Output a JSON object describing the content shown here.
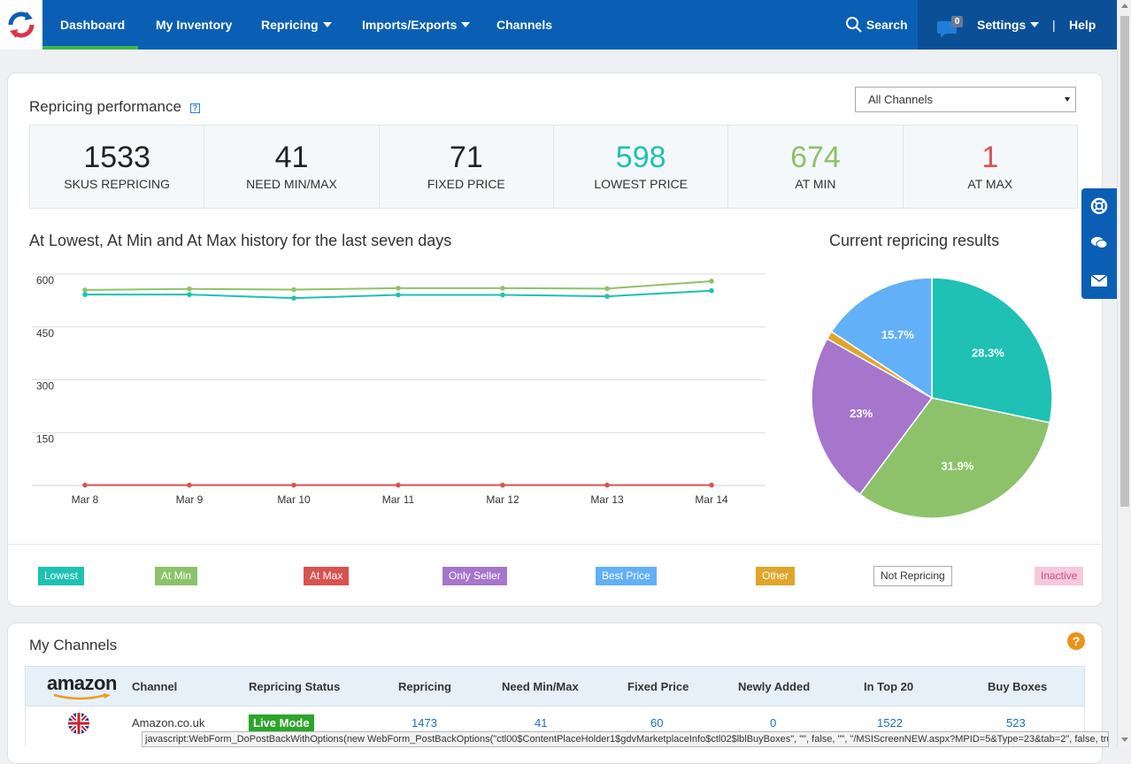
{
  "nav": {
    "items": [
      {
        "label": "Dashboard",
        "dropdown": false
      },
      {
        "label": "My Inventory",
        "dropdown": false
      },
      {
        "label": "Repricing",
        "dropdown": true
      },
      {
        "label": "Imports/Exports",
        "dropdown": true
      },
      {
        "label": "Channels",
        "dropdown": false
      }
    ],
    "search_label": "Search",
    "notification_count": "0",
    "settings_label": "Settings",
    "separator": "|",
    "help_label": "Help"
  },
  "performance": {
    "title": "Repricing performance",
    "help_icon": "?",
    "channel_select": "All Channels",
    "stats": [
      {
        "value": "1533",
        "label": "SKUS REPRICING",
        "color": "#222222"
      },
      {
        "value": "41",
        "label": "NEED MIN/MAX",
        "color": "#222222"
      },
      {
        "value": "71",
        "label": "FIXED PRICE",
        "color": "#222222"
      },
      {
        "value": "598",
        "label": "LOWEST PRICE",
        "color": "#1ec1b3"
      },
      {
        "value": "674",
        "label": "AT MIN",
        "color": "#8dc26a"
      },
      {
        "value": "1",
        "label": "AT MAX",
        "color": "#d9534f"
      }
    ]
  },
  "history_title": "At Lowest, At Min and At Max history for the last seven days",
  "pie_title": "Current repricing results",
  "chart_data": [
    {
      "type": "line",
      "x": [
        "Mar 8",
        "Mar 9",
        "Mar 10",
        "Mar 11",
        "Mar 12",
        "Mar 13",
        "Mar 14"
      ],
      "y_ticks": [
        150,
        300,
        450,
        600
      ],
      "ylim": [
        0,
        600
      ],
      "grid": true,
      "series": [
        {
          "color": "#8dc26a",
          "values": [
            555,
            558,
            556,
            560,
            560,
            559,
            580
          ]
        },
        {
          "color": "#1ec1b3",
          "values": [
            542,
            542,
            532,
            541,
            541,
            537,
            553
          ]
        },
        {
          "color": "#d9534f",
          "values": [
            1,
            1,
            1,
            1,
            1,
            1,
            1
          ]
        }
      ]
    },
    {
      "type": "pie",
      "slices": [
        {
          "value": 28.3,
          "label": "28.3%",
          "color": "#1ec1b3"
        },
        {
          "value": 31.9,
          "label": "31.9%",
          "color": "#8dc26a"
        },
        {
          "value": 23.0,
          "label": "23%",
          "color": "#a576cc"
        },
        {
          "value": 1.1,
          "label": "",
          "color": "#e0a52a"
        },
        {
          "value": 15.7,
          "label": "15.7%",
          "color": "#62b0f8"
        }
      ]
    }
  ],
  "legend": [
    {
      "label": "Lowest",
      "bg": "#1ec1b3",
      "fg": "#ffffff"
    },
    {
      "label": "At Min",
      "bg": "#8dc26a",
      "fg": "#ffffff"
    },
    {
      "label": "At Max",
      "bg": "#d9534f",
      "fg": "#ffffff"
    },
    {
      "label": "Only Seller",
      "bg": "#a576cc",
      "fg": "#ffffff"
    },
    {
      "label": "Best Price",
      "bg": "#62b0f8",
      "fg": "#ffffff"
    },
    {
      "label": "Other",
      "bg": "#e0a52a",
      "fg": "#ffffff"
    },
    {
      "label": "Not Repricing",
      "bg": "#ffffff",
      "fg": "#333333"
    },
    {
      "label": "Inactive",
      "bg": "#f6c8dc",
      "fg": "#d04a8a"
    }
  ],
  "channels": {
    "title": "My Channels",
    "help_icon": "?",
    "logo_text": "amazon",
    "columns": [
      "Channel",
      "Repricing Status",
      "Repricing",
      "Need Min/Max",
      "Fixed Price",
      "Newly Added",
      "In Top 20",
      "Buy Boxes"
    ],
    "rows": [
      {
        "channel": "Amazon.co.uk",
        "status": "Live Mode",
        "repricing": "1473",
        "need_min_max": "41",
        "fixed_price": "60",
        "newly_added": "0",
        "in_top_20": "1522",
        "buy_boxes": "523"
      }
    ]
  },
  "status_bar": "javascript:WebForm_DoPostBackWithOptions(new WebForm_PostBackOptions(\"ctl00$ContentPlaceHolder1$gdvMarketplaceInfo$ctl02$lblBuyBoxes\", \"\", false, \"\", \"/MSIScreenNEW.aspx?MPID=5&Type=23&tab=2\", false, true))"
}
